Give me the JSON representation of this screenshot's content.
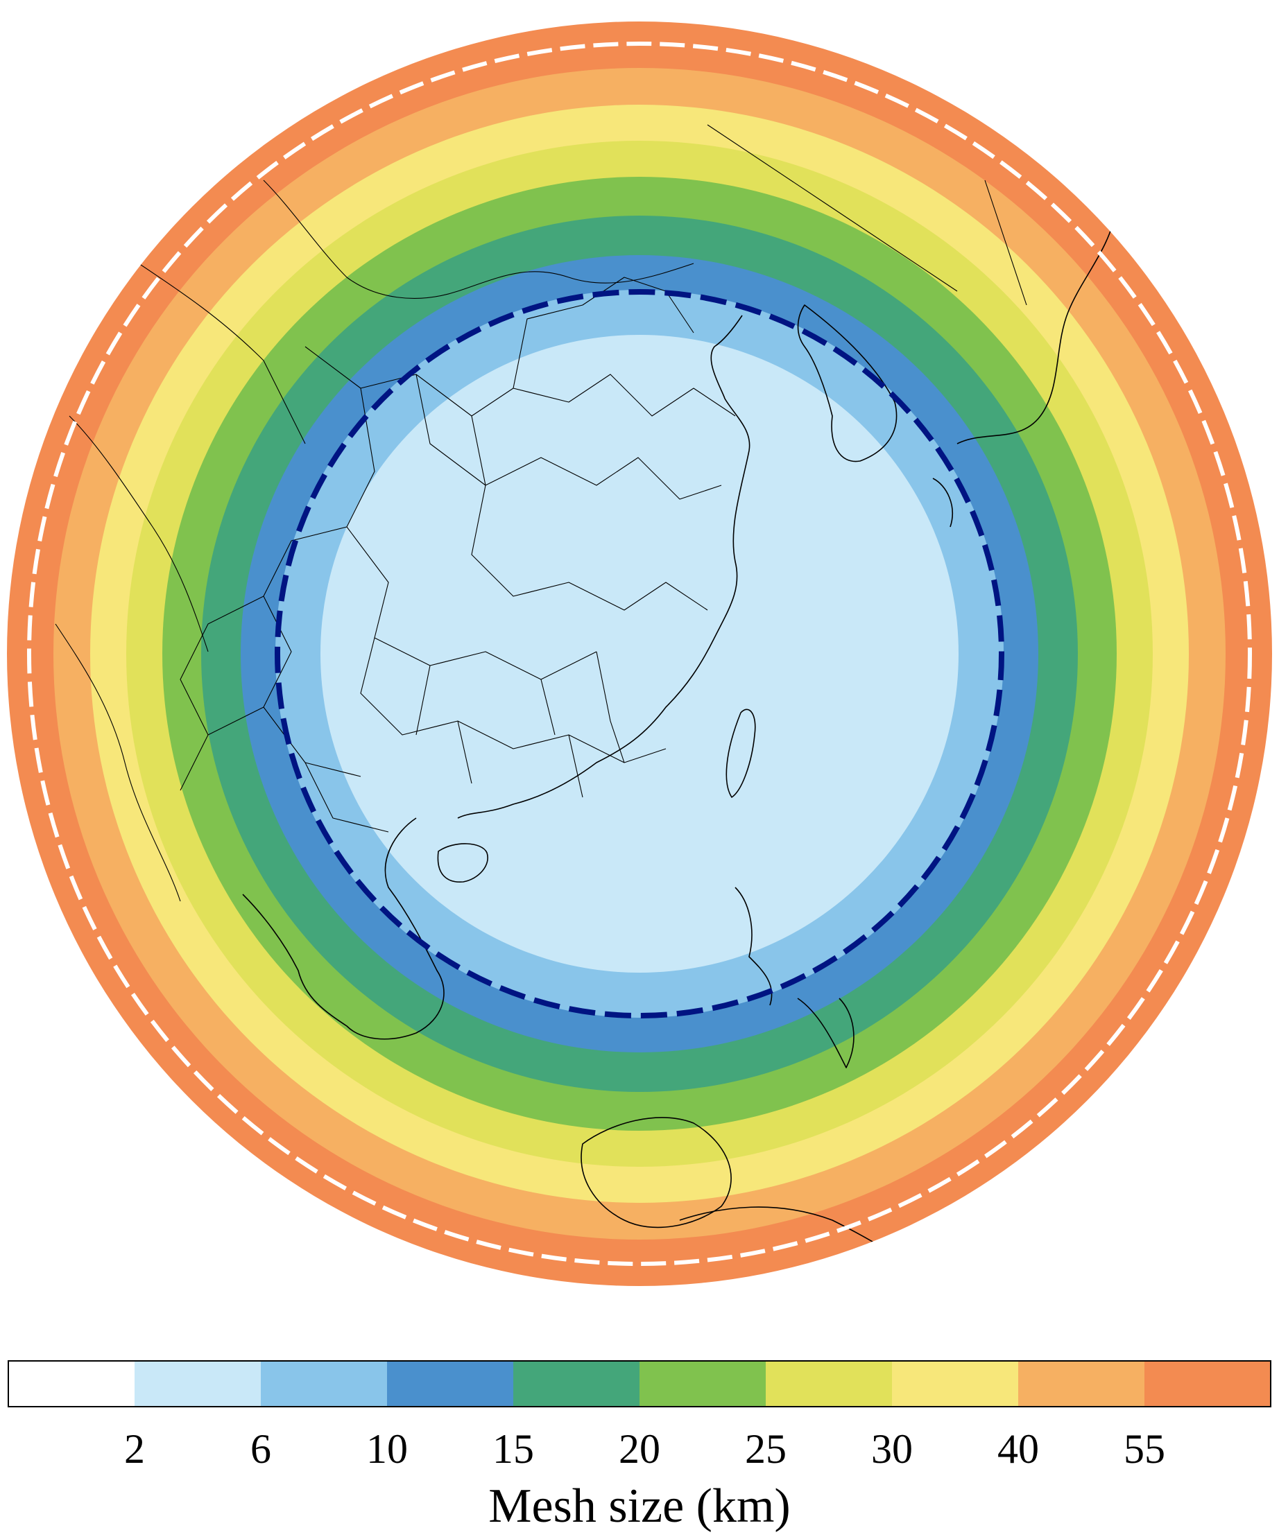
{
  "map": {
    "projection": "orthographic",
    "rings_inner_to_outer": [
      "#c9e8f8",
      "#89c5ea",
      "#4a90cd",
      "#44a67a",
      "#80c24e",
      "#e1e15a",
      "#f7e77a",
      "#f6b062",
      "#f38b51"
    ],
    "inner_dashed_circle_color": "#001482",
    "outer_dashed_circle_color": "#ffffff",
    "coastline_color": "#000000"
  },
  "colorbar": {
    "title": "Mesh size (km)",
    "ticks": [
      "2",
      "6",
      "10",
      "15",
      "20",
      "25",
      "30",
      "40",
      "55"
    ],
    "colors": [
      "#ffffff",
      "#c9e8f8",
      "#89c5ea",
      "#4a90cd",
      "#44a67a",
      "#80c24e",
      "#e1e15a",
      "#f7e77a",
      "#f6b062",
      "#f38b51"
    ]
  }
}
